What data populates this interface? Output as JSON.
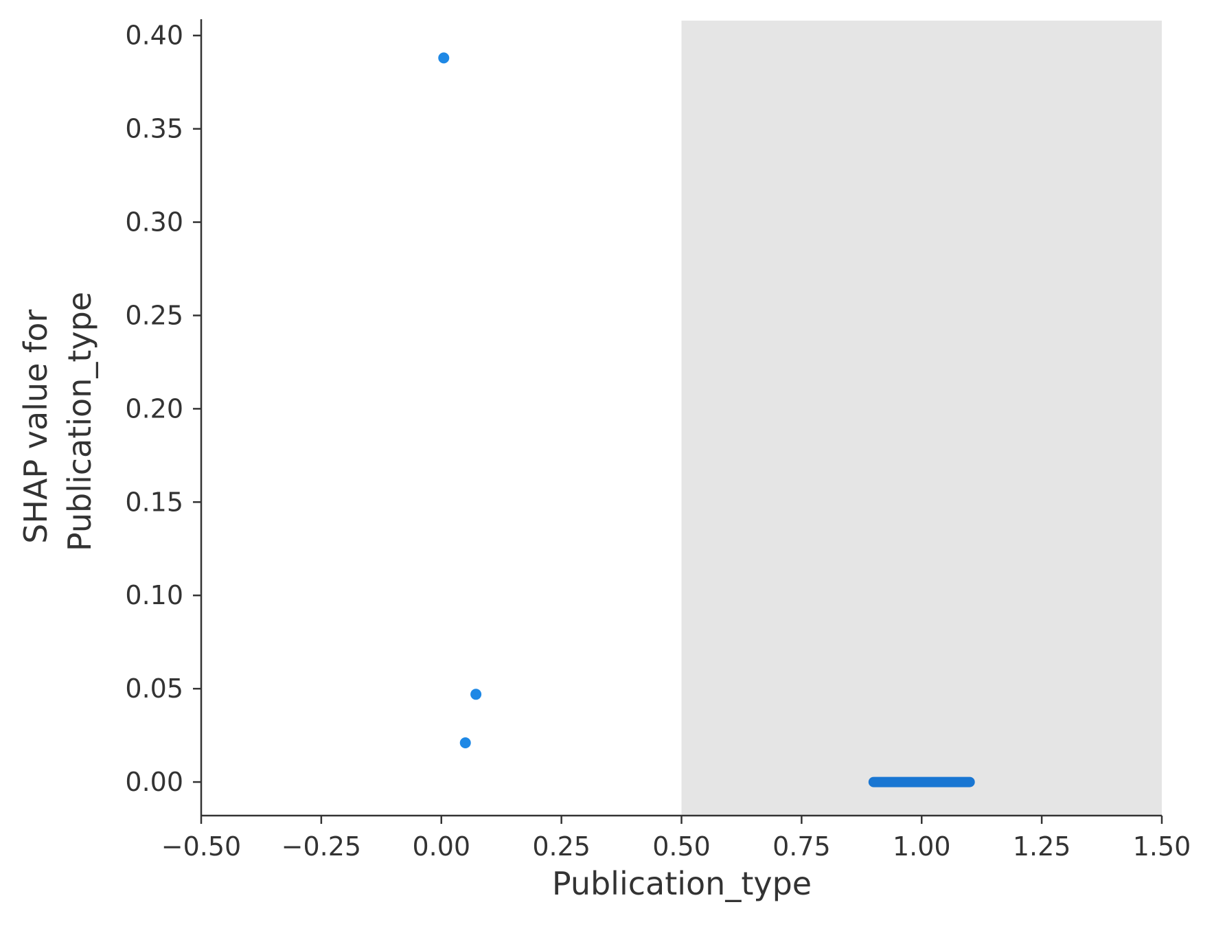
{
  "chart_data": {
    "type": "scatter",
    "title": "",
    "xlabel": "Publication_type",
    "ylabel_lines": [
      "SHAP value for",
      "Publication_type"
    ],
    "xlim": [
      -0.5,
      1.5
    ],
    "ylim": [
      -0.018,
      0.408
    ],
    "x_ticks": [
      -0.5,
      -0.25,
      0.0,
      0.25,
      0.5,
      0.75,
      1.0,
      1.25,
      1.5
    ],
    "x_tick_labels": [
      "−0.50",
      "−0.25",
      "0.00",
      "0.25",
      "0.50",
      "0.75",
      "1.00",
      "1.25",
      "1.50"
    ],
    "y_ticks": [
      0.0,
      0.05,
      0.1,
      0.15,
      0.2,
      0.25,
      0.3,
      0.35,
      0.4
    ],
    "y_tick_labels": [
      "0.00",
      "0.05",
      "0.10",
      "0.15",
      "0.20",
      "0.25",
      "0.30",
      "0.35",
      "0.40"
    ],
    "grid": false,
    "shaded_region": {
      "x": [
        0.5,
        1.5
      ],
      "color": "#e5e5e5"
    },
    "point_color": "#1e88e5",
    "points": [
      {
        "x": 0.005,
        "y": 0.388
      },
      {
        "x": 0.072,
        "y": 0.047
      },
      {
        "x": 0.05,
        "y": 0.021
      }
    ],
    "dense_points": {
      "x_range": [
        0.9,
        1.1
      ],
      "y": 0.0,
      "color": "#1976d2"
    }
  }
}
